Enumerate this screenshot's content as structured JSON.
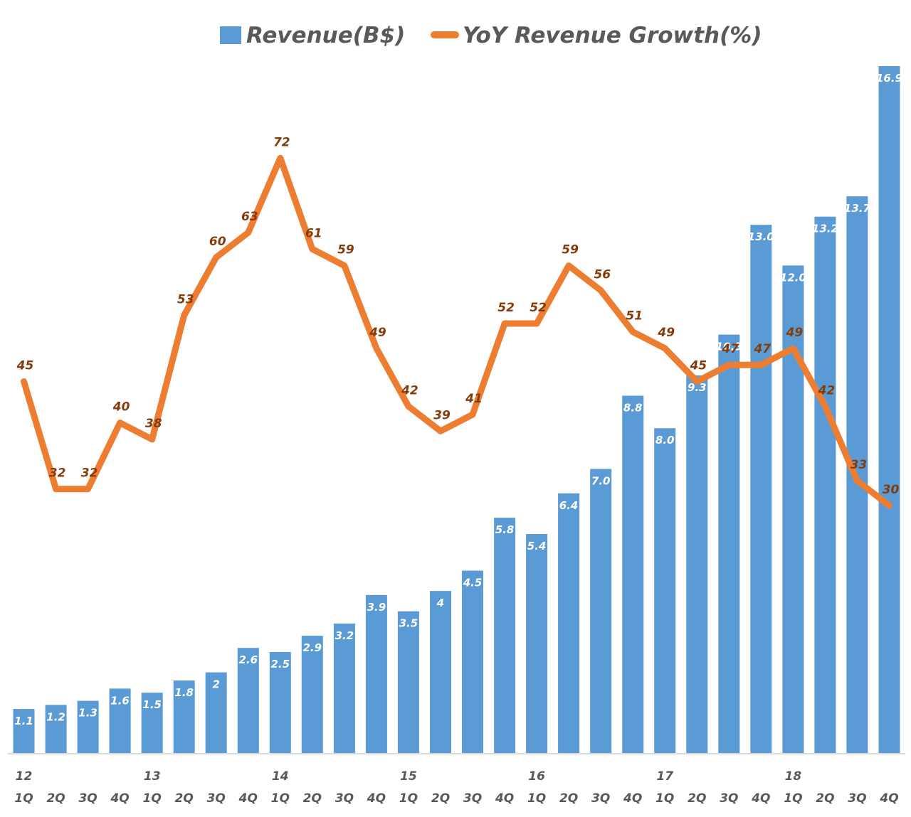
{
  "chart_data": {
    "type": "bar+line",
    "title": "",
    "legend_position": "top",
    "legend": [
      {
        "name": "Revenue(B$)",
        "kind": "bar",
        "color": "#5b9bd5"
      },
      {
        "name": "YoY Revenue Growth(%)",
        "kind": "line",
        "color": "#ed7d31"
      }
    ],
    "categories": [
      "1Q",
      "2Q",
      "3Q",
      "4Q",
      "1Q",
      "2Q",
      "3Q",
      "4Q",
      "1Q",
      "2Q",
      "3Q",
      "4Q",
      "1Q",
      "2Q",
      "3Q",
      "4Q",
      "1Q",
      "2Q",
      "3Q",
      "4Q",
      "1Q",
      "2Q",
      "3Q",
      "4Q",
      "1Q",
      "2Q",
      "3Q",
      "4Q"
    ],
    "year_labels": [
      {
        "index": 0,
        "label": "12"
      },
      {
        "index": 4,
        "label": "13"
      },
      {
        "index": 8,
        "label": "14"
      },
      {
        "index": 12,
        "label": "15"
      },
      {
        "index": 16,
        "label": "16"
      },
      {
        "index": 20,
        "label": "17"
      },
      {
        "index": 24,
        "label": "18"
      }
    ],
    "series": [
      {
        "name": "Revenue(B$)",
        "type": "bar",
        "axis": "primary",
        "color": "#5b9bd5",
        "values": [
          1.1,
          1.2,
          1.3,
          1.6,
          1.5,
          1.8,
          2,
          2.6,
          2.5,
          2.9,
          3.2,
          3.9,
          3.5,
          4,
          4.5,
          5.8,
          5.4,
          6.4,
          7.0,
          8.8,
          8.0,
          9.3,
          10.3,
          13.0,
          12.0,
          13.2,
          13.7,
          16.9
        ],
        "labels": [
          "1.1",
          "1.2",
          "1.3",
          "1.6",
          "1.5",
          "1.8",
          "2",
          "2.6",
          "2.5",
          "2.9",
          "3.2",
          "3.9",
          "3.5",
          "4",
          "4.5",
          "5.8",
          "5.4",
          "6.4",
          "7.0",
          "8.8",
          "8.0",
          "9.3",
          "10.3",
          "13.0",
          "12.0",
          "13.2",
          "13.7",
          "16.9"
        ]
      },
      {
        "name": "YoY Revenue Growth(%)",
        "type": "line",
        "axis": "secondary",
        "color": "#ed7d31",
        "label_color": "#843c0c",
        "values": [
          45,
          32,
          32,
          40,
          38,
          53,
          60,
          63,
          72,
          61,
          59,
          49,
          42,
          39,
          41,
          52,
          52,
          59,
          56,
          51,
          49,
          45,
          47,
          47,
          49,
          42,
          33,
          30
        ]
      }
    ],
    "primary_ylim": [
      0,
      16.9
    ],
    "secondary_ylim": [
      0,
      82
    ],
    "axis_line_color": "#d9d9d9",
    "grid": false,
    "xlabel": "",
    "ylabel": ""
  }
}
